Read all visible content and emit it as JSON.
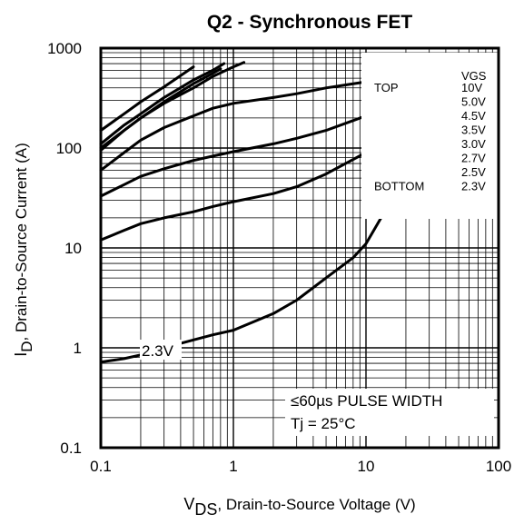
{
  "chart_data": {
    "type": "line",
    "title": "Q2 - Synchronous FET",
    "xlabel": {
      "main": "V",
      "sub": "DS",
      "rest": ", Drain-to-Source Voltage (V)"
    },
    "ylabel": {
      "main": "I",
      "sub": "D",
      "rest": ", Drain-to-Source Current (A)"
    },
    "x_scale": "log",
    "y_scale": "log",
    "xlim": [
      0.1,
      100
    ],
    "ylim": [
      0.1,
      1000
    ],
    "x_ticks": [
      {
        "value": 0.1,
        "label": "0.1"
      },
      {
        "value": 1,
        "label": "1"
      },
      {
        "value": 10,
        "label": "10"
      },
      {
        "value": 100,
        "label": "100"
      }
    ],
    "y_ticks": [
      {
        "value": 0.1,
        "label": "0.1"
      },
      {
        "value": 1,
        "label": "1"
      },
      {
        "value": 10,
        "label": "10"
      },
      {
        "value": 100,
        "label": "100"
      },
      {
        "value": 1000,
        "label": "1000"
      }
    ],
    "grid": true,
    "legend": {
      "placement": "top-right",
      "header": "VGS",
      "top_label": "TOP",
      "bottom_label": "BOTTOM",
      "entries": [
        "10V",
        "5.0V",
        "4.5V",
        "3.5V",
        "3.0V",
        "2.7V",
        "2.5V",
        "2.3V"
      ]
    },
    "annotations": {
      "curve_label": "2.3V",
      "pulse_prefix": "≤",
      "pulse_text": "60µs PULSE WIDTH",
      "temperature": "Tj = 25°C"
    },
    "series": [
      {
        "name": "10V",
        "x": [
          0.1,
          0.15,
          0.2,
          0.3,
          0.4,
          0.5
        ],
        "y": [
          150,
          220,
          290,
          410,
          530,
          650
        ]
      },
      {
        "name": "5.0V",
        "x": [
          0.1,
          0.15,
          0.2,
          0.3,
          0.5,
          0.7,
          0.85
        ],
        "y": [
          110,
          170,
          220,
          320,
          480,
          600,
          700
        ]
      },
      {
        "name": "4.5V",
        "x": [
          0.1,
          0.15,
          0.2,
          0.3,
          0.5,
          0.7,
          0.8
        ],
        "y": [
          95,
          150,
          200,
          290,
          440,
          560,
          620
        ]
      },
      {
        "name": "3.5V",
        "x": [
          0.1,
          0.15,
          0.2,
          0.3,
          0.5,
          0.7,
          1.0,
          1.2
        ],
        "y": [
          100,
          150,
          200,
          280,
          400,
          520,
          650,
          720
        ]
      },
      {
        "name": "3.0V",
        "x": [
          0.1,
          0.15,
          0.2,
          0.3,
          0.5,
          0.7,
          1,
          2,
          3,
          5,
          10
        ],
        "y": [
          60,
          90,
          120,
          160,
          210,
          250,
          280,
          320,
          350,
          400,
          460
        ]
      },
      {
        "name": "2.7V",
        "x": [
          0.1,
          0.15,
          0.2,
          0.3,
          0.5,
          0.7,
          1,
          2,
          3,
          5,
          10
        ],
        "y": [
          33,
          43,
          52,
          62,
          75,
          83,
          92,
          110,
          125,
          150,
          210
        ]
      },
      {
        "name": "2.5V",
        "x": [
          0.1,
          0.15,
          0.2,
          0.3,
          0.5,
          0.7,
          1,
          2,
          3,
          5,
          10
        ],
        "y": [
          12,
          15,
          17.5,
          20,
          23,
          26,
          29,
          35,
          41,
          55,
          90
        ]
      },
      {
        "name": "2.3V",
        "x": [
          0.1,
          0.15,
          0.2,
          0.3,
          0.5,
          0.7,
          1,
          2,
          3,
          5,
          8,
          10,
          13,
          15,
          16
        ],
        "y": [
          0.72,
          0.78,
          0.85,
          1.0,
          1.2,
          1.35,
          1.5,
          2.2,
          3.0,
          5.0,
          8.0,
          11,
          20,
          50,
          90
        ]
      }
    ]
  }
}
